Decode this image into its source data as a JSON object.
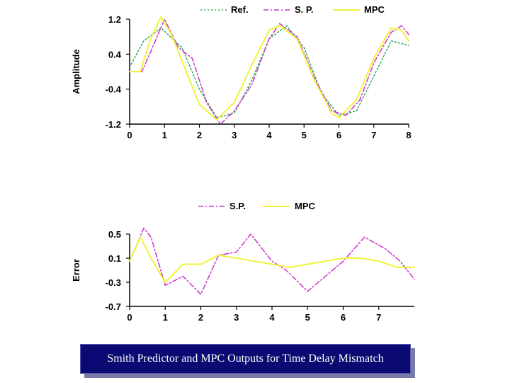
{
  "chart_data": [
    {
      "type": "line",
      "ylabel": "Amplitude",
      "xlabel": "",
      "xlim": [
        0,
        8
      ],
      "ylim": [
        -1.2,
        1.2
      ],
      "x_ticks": [
        "0",
        "1",
        "2",
        "3",
        "4",
        "5",
        "6",
        "7",
        "8"
      ],
      "y_ticks": [
        "1.2",
        "0.4",
        "-0.4",
        "-1.2"
      ],
      "legend_position": "top",
      "series": [
        {
          "name": "Ref.",
          "color": "#33aa55",
          "style": "dotted",
          "x": [
            0,
            0.4,
            0.9,
            1.5,
            2.0,
            2.5,
            3.0,
            3.5,
            4.0,
            4.5,
            5.0,
            5.5,
            6.0,
            6.5,
            7.0,
            7.5,
            8.0
          ],
          "y": [
            0.1,
            0.7,
            1.0,
            0.55,
            -0.4,
            -1.05,
            -0.95,
            -0.2,
            0.75,
            1.05,
            0.55,
            -0.5,
            -1.0,
            -0.9,
            -0.1,
            0.7,
            0.6
          ]
        },
        {
          "name": "S. P.",
          "color": "#cc33cc",
          "style": "dashdot",
          "x": [
            0,
            0.35,
            0.6,
            1.0,
            1.4,
            1.8,
            2.2,
            2.6,
            3.0,
            3.5,
            4.0,
            4.3,
            4.8,
            5.3,
            5.8,
            6.2,
            6.6,
            7.0,
            7.5,
            7.8,
            8.0
          ],
          "y": [
            0.0,
            0.0,
            0.45,
            1.2,
            0.55,
            0.3,
            -0.7,
            -1.2,
            -0.9,
            -0.3,
            0.75,
            1.1,
            0.8,
            -0.15,
            -0.9,
            -1.0,
            -0.65,
            0.2,
            0.9,
            1.05,
            0.85
          ]
        },
        {
          "name": "MPC",
          "color": "#f2f23a",
          "style": "solid",
          "x": [
            0,
            0.3,
            0.6,
            0.9,
            1.2,
            1.6,
            2.0,
            2.5,
            3.0,
            3.5,
            4.0,
            4.3,
            4.8,
            5.3,
            5.8,
            6.0,
            6.5,
            7.0,
            7.5,
            7.8,
            8.0
          ],
          "y": [
            0.0,
            0.0,
            0.75,
            1.25,
            0.85,
            0.05,
            -0.75,
            -1.1,
            -0.7,
            0.15,
            0.95,
            1.05,
            0.75,
            -0.2,
            -0.95,
            -1.05,
            -0.65,
            0.3,
            1.0,
            0.95,
            0.7
          ]
        }
      ]
    },
    {
      "type": "line",
      "ylabel": "Error",
      "xlabel": "",
      "xlim": [
        0,
        8
      ],
      "ylim": [
        -0.7,
        0.5
      ],
      "x_ticks": [
        "0",
        "1",
        "2",
        "3",
        "4",
        "5",
        "6",
        "7"
      ],
      "y_ticks": [
        "0.5",
        "0.1",
        "-0.3",
        "-0.7"
      ],
      "legend_position": "top",
      "series": [
        {
          "name": "S.P.",
          "color": "#cc33cc",
          "style": "dashdot",
          "x": [
            0,
            0.4,
            0.6,
            1.0,
            1.5,
            2.0,
            2.5,
            3.0,
            3.4,
            4.0,
            4.4,
            5.0,
            5.4,
            6.0,
            6.6,
            7.2,
            7.6,
            8.0
          ],
          "y": [
            0.05,
            0.6,
            0.45,
            -0.35,
            -0.2,
            -0.5,
            0.15,
            0.2,
            0.5,
            0.05,
            -0.1,
            -0.45,
            -0.25,
            0.05,
            0.45,
            0.25,
            0.05,
            -0.25
          ]
        },
        {
          "name": "MPC",
          "color": "#f2f23a",
          "style": "solid",
          "x": [
            0,
            0.3,
            0.6,
            1.0,
            1.5,
            2.0,
            2.5,
            3.0,
            3.5,
            4.0,
            4.5,
            5.0,
            5.5,
            6.0,
            6.5,
            7.0,
            7.5,
            8.0
          ],
          "y": [
            0.05,
            0.45,
            0.1,
            -0.3,
            0.0,
            0.0,
            0.15,
            0.1,
            0.05,
            0.0,
            -0.05,
            0.0,
            0.05,
            0.1,
            0.1,
            0.05,
            -0.05,
            -0.05
          ]
        }
      ]
    }
  ],
  "caption": "Smith Predictor and MPC Outputs for Time Delay Mismatch"
}
